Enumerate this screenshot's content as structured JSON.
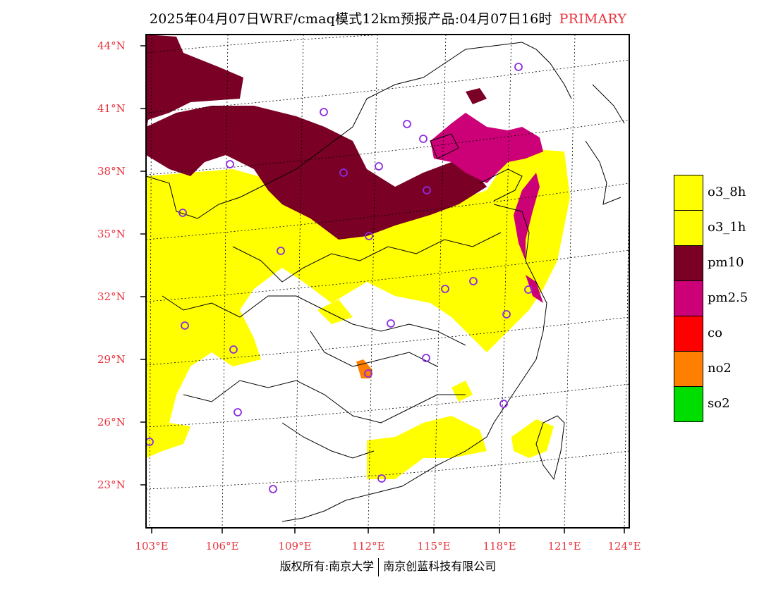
{
  "title": {
    "text": "2025年04月07日WRF/cmaq模式12km预报产品:04月07日16时",
    "tag": "PRIMARY",
    "tag_color": "#e8323c"
  },
  "axes": {
    "lat_labels": [
      "44°N",
      "41°N",
      "38°N",
      "35°N",
      "32°N",
      "29°N",
      "26°N",
      "23°N"
    ],
    "lon_labels": [
      "103°E",
      "106°E",
      "109°E",
      "112°E",
      "115°E",
      "118°E",
      "121°E",
      "124°E"
    ],
    "label_color": "#e8323c"
  },
  "legend": [
    {
      "label": "o3_8h",
      "color": "#ffff00"
    },
    {
      "label": "o3_1h",
      "color": "#ffff00"
    },
    {
      "label": "pm10",
      "color": "#7a0026"
    },
    {
      "label": "pm2.5",
      "color": "#cc0077"
    },
    {
      "label": "co",
      "color": "#ff0000"
    },
    {
      "label": "no2",
      "color": "#ff8000"
    },
    {
      "label": "so2",
      "color": "#00dd00"
    }
  ],
  "footer": {
    "left": "版权所有:南京大学",
    "right": "南京创蓝科技有限公司"
  },
  "markers": {
    "shape": "ring-icon",
    "color": "#8a2be2"
  }
}
